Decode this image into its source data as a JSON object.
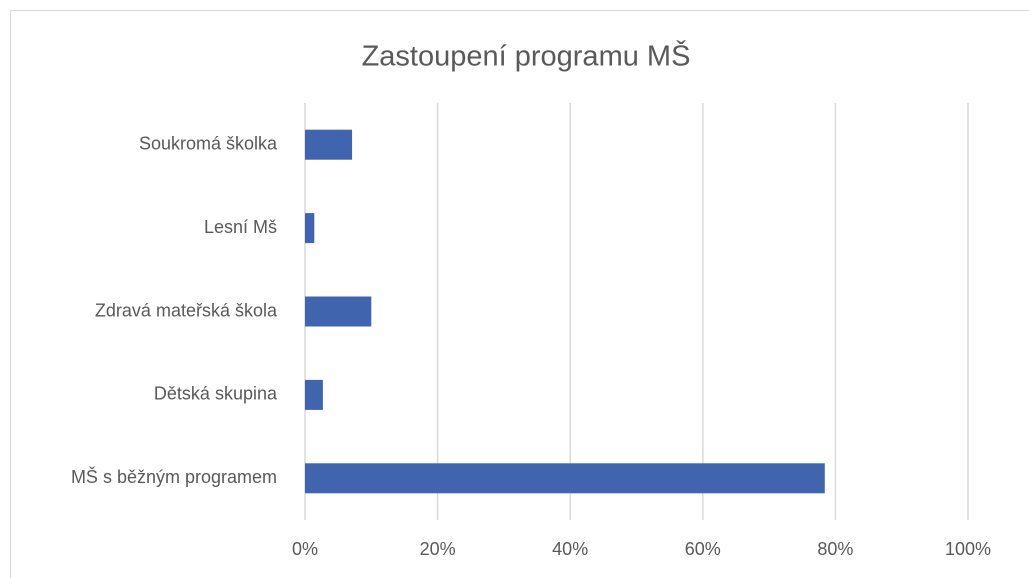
{
  "chart_data": {
    "type": "bar",
    "orientation": "horizontal",
    "title": "Zastoupení programu MŠ",
    "categories": [
      "Soukromá školka",
      "Lesní Mš",
      "Zdravá mateřská škola",
      "Dětská skupina",
      "MŠ s běžným programem"
    ],
    "values": [
      7.1,
      1.4,
      10,
      2.7,
      78.4
    ],
    "color": "#4064ad",
    "xlim": [
      0,
      100
    ],
    "xticks": [
      {
        "value": 0,
        "label": "0%"
      },
      {
        "value": 20,
        "label": "20%"
      },
      {
        "value": 40,
        "label": "40%"
      },
      {
        "value": 60,
        "label": "60%"
      },
      {
        "value": 80,
        "label": "80%"
      },
      {
        "value": 100,
        "label": "100%"
      }
    ],
    "grid": true
  }
}
